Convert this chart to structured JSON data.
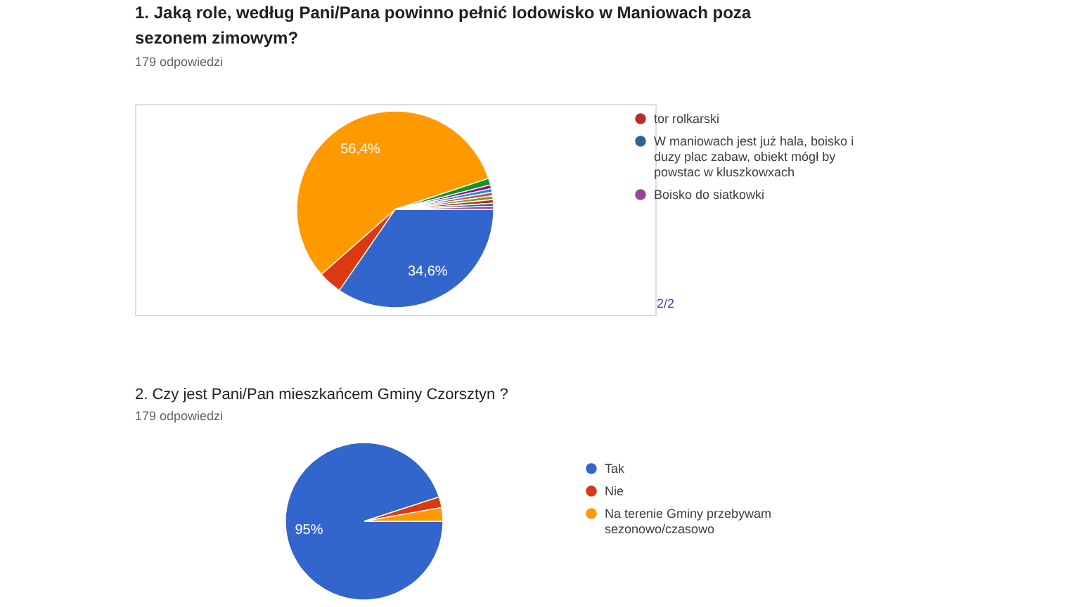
{
  "chart_data": [
    {
      "type": "pie",
      "title": "1. Jaką role, według Pani/Pana powinno pełnić lodowisko w Maniowach poza sezonem zimowym?",
      "subtitle": "179 odpowiedzi",
      "categories": [
        null,
        null,
        null,
        null,
        null,
        null,
        null,
        null,
        "tor rolkarski",
        "W maniowach jest już hala, boisko i duzy plac zabaw, obiekt mógł by powstac w kluszkowxach",
        "Boisko do siatkowki"
      ],
      "values": [
        34.6,
        3.9,
        56.4,
        1.1,
        0.6,
        0.6,
        0.6,
        0.6,
        0.6,
        0.5,
        0.5
      ],
      "colors": [
        "#3366cc",
        "#dc3912",
        "#ff9900",
        "#109618",
        "#990099",
        "#0099c6",
        "#dd4477",
        "#66aa00",
        "#b82e2e",
        "#316395",
        "#994499"
      ],
      "value_labels": [
        "34,6%",
        null,
        "56,4%",
        null,
        null,
        null,
        null,
        null,
        null,
        null,
        null
      ],
      "legend": "right",
      "annotations": [
        "2/2"
      ]
    },
    {
      "type": "pie",
      "title": "2. Czy jest Pani/Pan mieszkańcem Gminy Czorsztyn ?",
      "subtitle": "179 odpowiedzi",
      "categories": [
        "Tak",
        "Nie",
        "Na terenie Gminy przebywam sezonowo/czasowo"
      ],
      "values": [
        95,
        2.2,
        2.8
      ],
      "colors": [
        "#3366cc",
        "#dc3912",
        "#ff9900"
      ],
      "value_labels": [
        "95%",
        null,
        null
      ],
      "legend": "right"
    }
  ]
}
